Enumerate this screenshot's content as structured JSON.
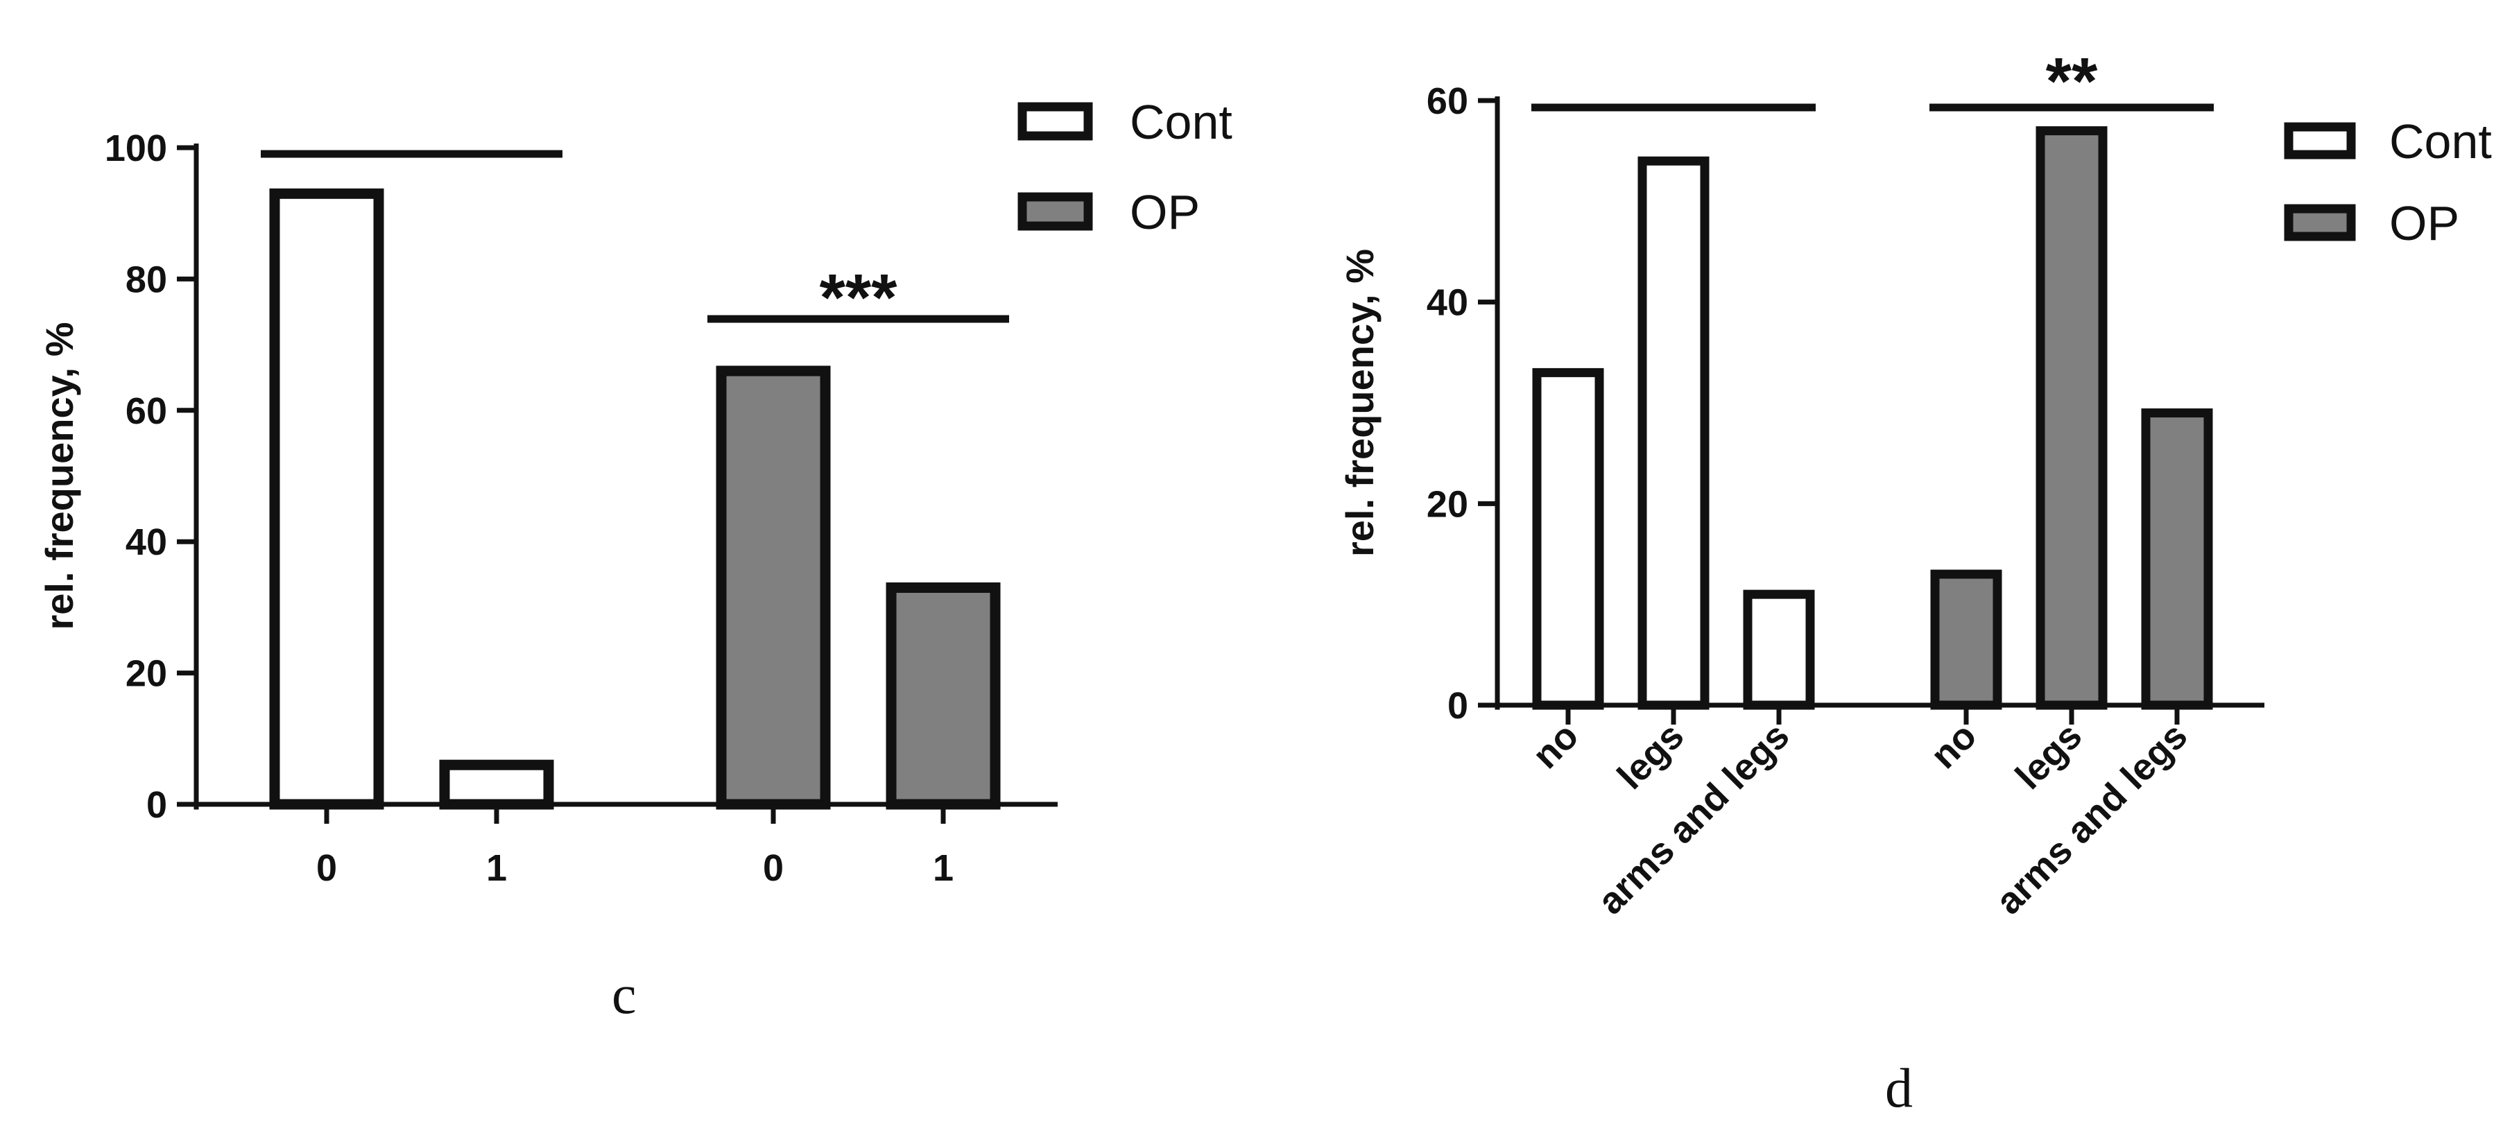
{
  "chart_data": [
    {
      "panel": "c",
      "type": "bar",
      "ylabel": "rel. frequency, %",
      "ylim": [
        0,
        100
      ],
      "yticks": [
        0,
        20,
        40,
        60,
        80,
        100
      ],
      "groups": [
        {
          "series": "Cont",
          "categories": [
            "0",
            "1"
          ],
          "values": [
            93,
            6
          ]
        },
        {
          "series": "OP",
          "categories": [
            "0",
            "1"
          ],
          "values": [
            66,
            33
          ]
        }
      ],
      "legend": [
        {
          "name": "Cont",
          "color": "#ffffff"
        },
        {
          "name": "OP",
          "color": "#808080"
        }
      ],
      "legend_position": "top-right",
      "annotations": [
        {
          "group": 0,
          "text": ""
        },
        {
          "group": 1,
          "text": "***"
        }
      ],
      "grid": false
    },
    {
      "panel": "d",
      "type": "bar",
      "ylabel": "rel. frequency, %",
      "ylim": [
        0,
        60
      ],
      "yticks": [
        0,
        20,
        40,
        60
      ],
      "groups": [
        {
          "series": "Cont",
          "categories": [
            "no",
            "legs",
            "arms and legs"
          ],
          "values": [
            33,
            54,
            11
          ]
        },
        {
          "series": "OP",
          "categories": [
            "no",
            "legs",
            "arms and legs"
          ],
          "values": [
            13,
            57,
            29
          ]
        }
      ],
      "legend": [
        {
          "name": "Cont",
          "color": "#ffffff"
        },
        {
          "name": "OP",
          "color": "#808080"
        }
      ],
      "legend_position": "top-right",
      "annotations": [
        {
          "group": 0,
          "text": ""
        },
        {
          "group": 1,
          "text": "**"
        }
      ],
      "grid": false
    }
  ],
  "panel_labels": {
    "c": "c",
    "d": "d"
  }
}
